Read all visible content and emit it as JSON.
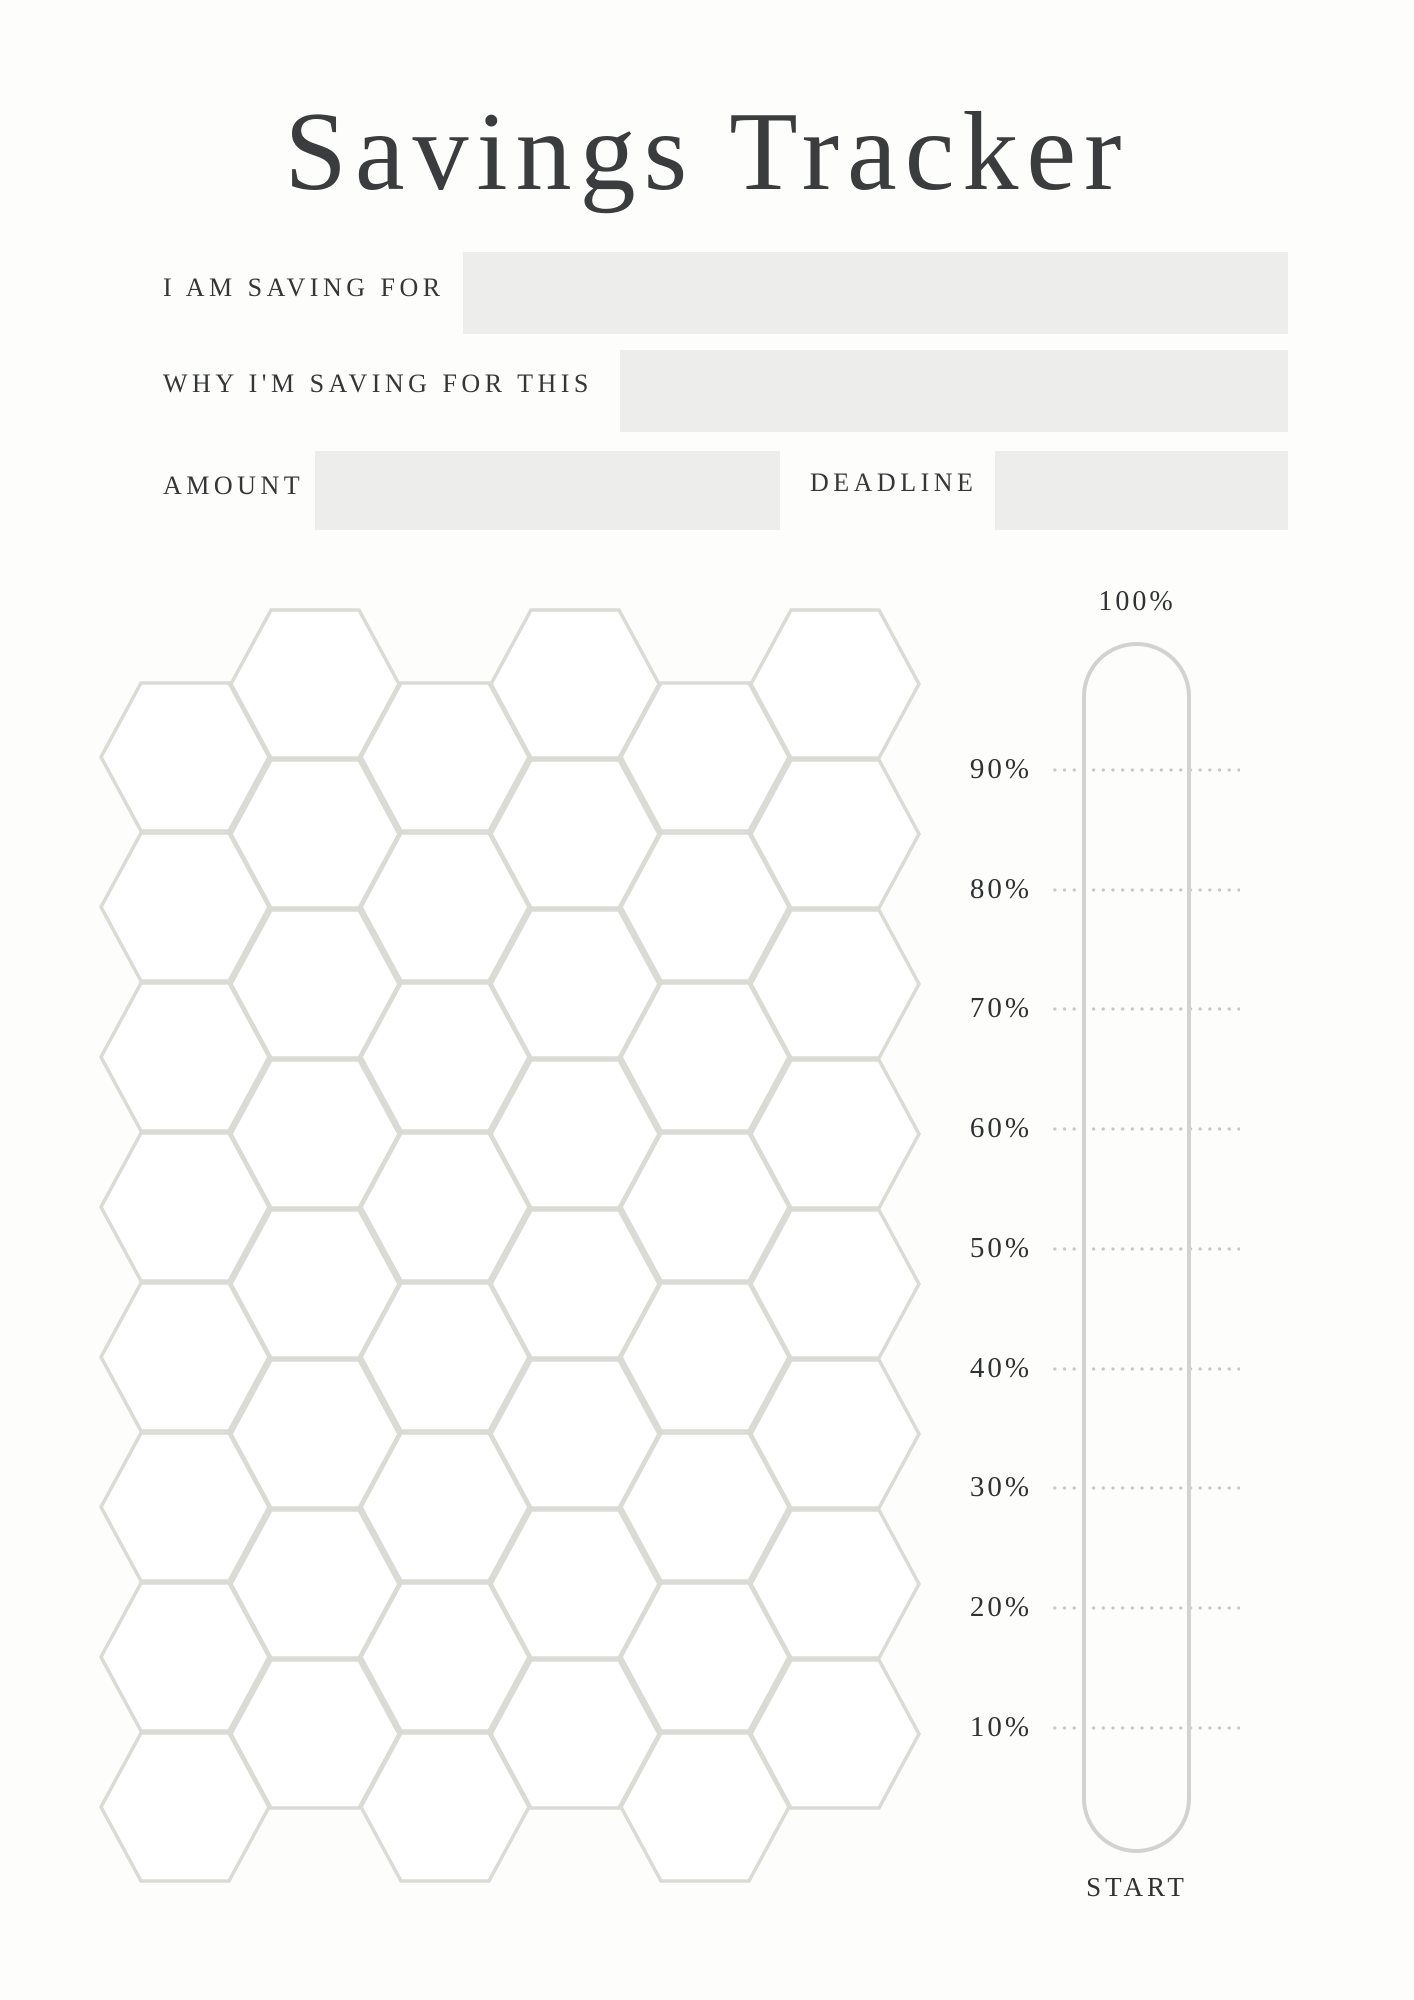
{
  "page": {
    "title": "Savings Tracker",
    "background": "#fdfdfc"
  },
  "form": {
    "saving_for": {
      "label": "I AM SAVING FOR",
      "value": ""
    },
    "why": {
      "label": "WHY I'M SAVING FOR THIS",
      "value": ""
    },
    "amount": {
      "label": "AMOUNT",
      "value": ""
    },
    "deadline": {
      "label": "DEADLINE",
      "value": ""
    }
  },
  "progress_scale": {
    "top_label": "100%",
    "ticks": [
      "90%",
      "80%",
      "70%",
      "60%",
      "50%",
      "40%",
      "30%",
      "20%",
      "10%"
    ],
    "bottom_label": "START"
  },
  "honeycomb": {
    "columns": 6,
    "rows_per_column": 8,
    "total_cells": 48
  },
  "colors": {
    "title_text": "#3a3c3e",
    "label_text": "#343638",
    "box_fill": "#ededec",
    "hex_stroke": "#dbdbd5",
    "scale_stroke": "#d2d2d0",
    "dot_color": "#c7c7c3"
  }
}
